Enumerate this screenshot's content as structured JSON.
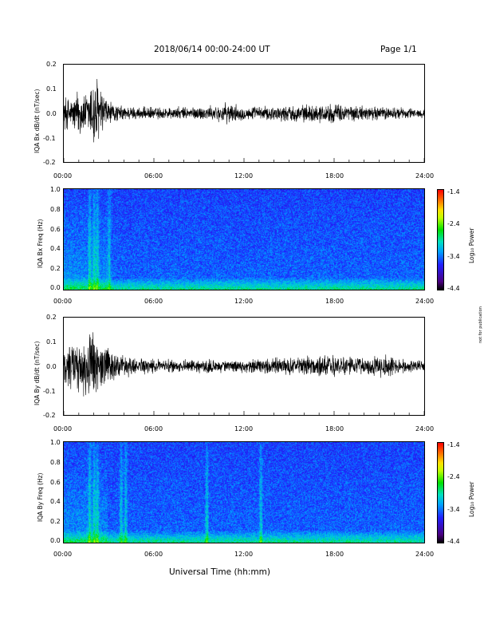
{
  "header": {
    "date_range": "2018/06/14  00:00-24:00 UT",
    "page": "Page 1/1"
  },
  "side_note": "not for publication",
  "x_axis": {
    "label": "Universal Time (hh:mm)",
    "ticks": [
      "00:00",
      "06:00",
      "12:00",
      "18:00",
      "24:00"
    ]
  },
  "chart_data": [
    {
      "type": "line",
      "ylabel": "IQA Bx dB/dt (nT/sec)",
      "xlim": [
        0,
        24
      ],
      "ylim": [
        -0.2,
        0.2
      ],
      "y_ticks": [
        "0.2",
        "0.1",
        "0.0",
        "-0.1",
        "-0.2"
      ],
      "x_unit": "hours UT",
      "envelope": {
        "x": [
          0,
          0.5,
          1.0,
          1.5,
          1.8,
          2.0,
          2.2,
          2.5,
          3.0,
          3.5,
          4.0,
          5.0,
          6.0,
          8.0,
          10.0,
          11.0,
          12.0,
          14.0,
          16.0,
          18.0,
          20.0,
          22.0,
          24.0
        ],
        "amplitude": [
          0.09,
          0.07,
          0.12,
          0.09,
          0.16,
          0.2,
          0.18,
          0.12,
          0.06,
          0.04,
          0.035,
          0.03,
          0.03,
          0.03,
          0.035,
          0.05,
          0.03,
          0.035,
          0.04,
          0.045,
          0.035,
          0.03,
          0.02
        ]
      }
    },
    {
      "type": "heatmap",
      "ylabel": "IQA Bx Freq (Hz)",
      "xlim": [
        0,
        24
      ],
      "ylim": [
        0,
        1.0
      ],
      "y_ticks": [
        "1.0",
        "0.8",
        "0.6",
        "0.4",
        "0.2",
        "0.0"
      ],
      "colorbar": {
        "label": "Log₁₀ Power",
        "range": [
          -4.4,
          -1.4
        ],
        "ticks": [
          "-1.4",
          "-2.4",
          "-3.4",
          "-4.4"
        ]
      },
      "bright_times": [
        1.7,
        2.0,
        2.2,
        3.0
      ]
    },
    {
      "type": "line",
      "ylabel": "IQA By dB/dt (nT/sec)",
      "xlim": [
        0,
        24
      ],
      "ylim": [
        -0.2,
        0.2
      ],
      "y_ticks": [
        "0.2",
        "0.1",
        "0.0",
        "-0.1",
        "-0.2"
      ],
      "x_unit": "hours UT",
      "envelope": {
        "x": [
          0,
          0.5,
          1.0,
          1.5,
          1.8,
          2.0,
          2.2,
          2.5,
          3.0,
          3.5,
          4.0,
          5.0,
          6.0,
          8.0,
          10.0,
          12.0,
          14.0,
          16.0,
          18.0,
          20.0,
          21.5,
          22.0,
          24.0
        ],
        "amplitude": [
          0.1,
          0.12,
          0.13,
          0.15,
          0.18,
          0.2,
          0.15,
          0.12,
          0.09,
          0.07,
          0.05,
          0.04,
          0.035,
          0.03,
          0.03,
          0.03,
          0.04,
          0.045,
          0.05,
          0.04,
          0.06,
          0.035,
          0.025
        ]
      }
    },
    {
      "type": "heatmap",
      "ylabel": "IQA By Freq (Hz)",
      "xlim": [
        0,
        24
      ],
      "ylim": [
        0,
        1.0
      ],
      "y_ticks": [
        "1.0",
        "0.8",
        "0.6",
        "0.4",
        "0.2",
        "0.0"
      ],
      "colorbar": {
        "label": "Log₁₀ Power",
        "range": [
          -4.4,
          -1.4
        ],
        "ticks": [
          "-1.4",
          "-2.4",
          "-3.4",
          "-4.4"
        ]
      },
      "bright_times": [
        1.7,
        2.0,
        2.2,
        3.8,
        4.1,
        9.5,
        13.1
      ]
    }
  ]
}
